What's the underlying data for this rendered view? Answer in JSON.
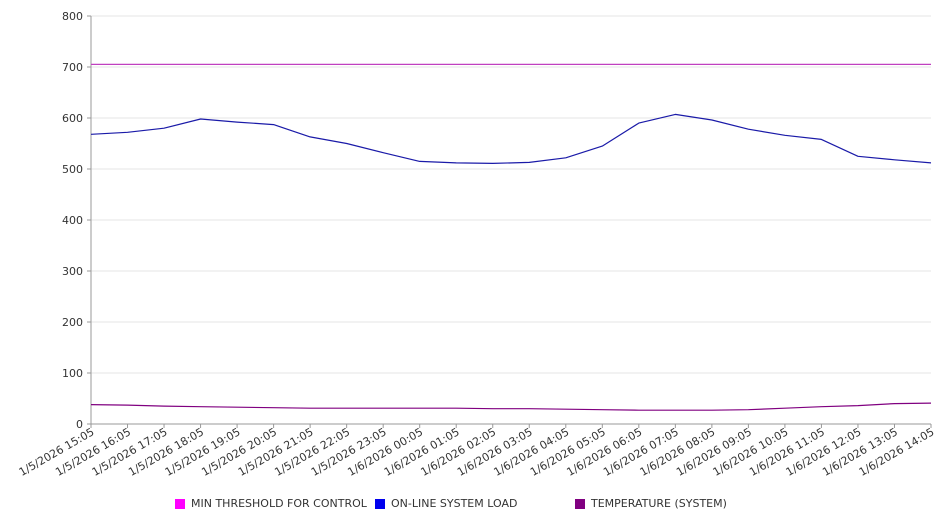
{
  "chart_data": {
    "type": "line",
    "title": "",
    "xlabel": "",
    "ylabel": "",
    "ylim": [
      0,
      800
    ],
    "yticks": [
      0,
      100,
      200,
      300,
      400,
      500,
      600,
      700,
      800
    ],
    "grid": true,
    "legend_position": "bottom",
    "categories": [
      "1/5/2026 15:05",
      "1/5/2026 16:05",
      "1/5/2026 17:05",
      "1/5/2026 18:05",
      "1/5/2026 19:05",
      "1/5/2026 20:05",
      "1/5/2026 21:05",
      "1/5/2026 22:05",
      "1/5/2026 23:05",
      "1/6/2026 00:05",
      "1/6/2026 01:05",
      "1/6/2026 02:05",
      "1/6/2026 03:05",
      "1/6/2026 04:05",
      "1/6/2026 05:05",
      "1/6/2026 06:05",
      "1/6/2026 07:05",
      "1/6/2026 08:05",
      "1/6/2026 09:05",
      "1/6/2026 10:05",
      "1/6/2026 11:05",
      "1/6/2026 12:05",
      "1/6/2026 13:05",
      "1/6/2026 14:05"
    ],
    "series": [
      {
        "name": "MIN THRESHOLD FOR CONTROL",
        "color": "#ff00ff",
        "line_color": "#c040c0",
        "values": [
          705,
          705,
          705,
          705,
          705,
          705,
          705,
          705,
          705,
          705,
          705,
          705,
          705,
          705,
          705,
          705,
          705,
          705,
          705,
          705,
          705,
          705,
          705,
          705
        ]
      },
      {
        "name": "ON-LINE SYSTEM LOAD",
        "color": "#0000ee",
        "line_color": "#1a1aa8",
        "values": [
          568,
          572,
          580,
          598,
          592,
          587,
          563,
          550,
          532,
          515,
          512,
          511,
          513,
          522,
          545,
          590,
          607,
          596,
          578,
          566,
          558,
          525,
          518,
          512
        ]
      },
      {
        "name": "TEMPERATURE (SYSTEM)",
        "color": "#800080",
        "line_color": "#800080",
        "values": [
          38,
          37,
          35,
          34,
          33,
          32,
          31,
          31,
          31,
          31,
          31,
          30,
          30,
          29,
          28,
          27,
          27,
          27,
          28,
          31,
          34,
          36,
          40,
          41
        ]
      }
    ]
  }
}
